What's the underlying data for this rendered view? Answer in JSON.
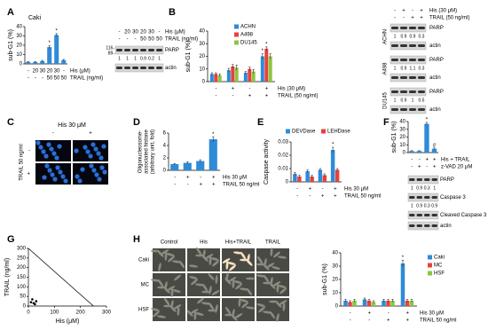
{
  "panels": [
    "A",
    "B",
    "C",
    "D",
    "E",
    "F",
    "G",
    "H"
  ],
  "chart_data": [
    {
      "type": "bar",
      "title": "Caki",
      "y_label": "sub-G1 (%)",
      "categories": [
        null,
        null,
        null,
        null,
        null,
        null
      ],
      "ylim": [
        0,
        40
      ],
      "yticks": [
        0,
        10,
        20,
        30,
        40
      ],
      "color": "#2e8bd8",
      "values": [
        2,
        2,
        3,
        18,
        31,
        4
      ],
      "errors": [
        0.5,
        0.5,
        0.8,
        1.5,
        1.5,
        0.8
      ],
      "significance": [
        null,
        null,
        null,
        "*",
        "*",
        null
      ],
      "condition_rows": [
        {
          "label": "His (μM)",
          "cells": [
            "-",
            "20",
            "30",
            "20",
            "30",
            "-"
          ]
        },
        {
          "label": "TRAIL (ng/ml)",
          "cells": [
            "-",
            "-",
            "-",
            "50",
            "50",
            "50"
          ]
        }
      ]
    },
    {
      "type": "bar",
      "y_label": "sub-G1 (%)",
      "categories": [
        null,
        null,
        null,
        null
      ],
      "ylim": [
        0,
        40
      ],
      "yticks": [
        0,
        10,
        20,
        30,
        40
      ],
      "series": [
        {
          "name": "ACHN",
          "color": "#2e8bd8",
          "values": [
            6,
            9,
            7,
            20
          ],
          "errors": [
            1,
            1.5,
            1,
            2
          ],
          "significance": [
            null,
            null,
            null,
            "*"
          ]
        },
        {
          "name": "A498",
          "color": "#e8413c",
          "values": [
            6,
            12,
            10,
            26
          ],
          "errors": [
            1,
            1.5,
            1.5,
            1.5
          ],
          "significance": [
            null,
            null,
            null,
            "*"
          ]
        },
        {
          "name": "DU145",
          "color": "#8cc63f",
          "values": [
            5,
            11,
            8,
            20
          ],
          "errors": [
            1,
            2,
            1.5,
            2
          ],
          "significance": [
            null,
            null,
            null,
            null
          ]
        }
      ],
      "condition_rows": [
        {
          "label": "His (30 μM)",
          "cells": [
            "-",
            "+",
            "-",
            "+"
          ]
        },
        {
          "label": "TRAIL (50 ng/ml)",
          "cells": [
            "-",
            "-",
            "+",
            "+"
          ]
        }
      ]
    },
    {
      "type": "bar",
      "y_label": [
        "Oligonucleosome-",
        "associated histone",
        "(arbitrary unit, fold)"
      ],
      "categories": [
        null,
        null,
        null,
        null
      ],
      "ylim": [
        0,
        6
      ],
      "yticks": [
        0,
        2,
        4,
        6
      ],
      "color": "#2e8bd8",
      "values": [
        1,
        1.2,
        1.5,
        5
      ],
      "errors": [
        0.1,
        0.2,
        0.2,
        0.4
      ],
      "significance": [
        null,
        null,
        null,
        "*"
      ],
      "condition_rows": [
        {
          "label": "His 30 μM",
          "cells": [
            "-",
            "+",
            "-",
            "+"
          ]
        },
        {
          "label": "TRAIL 50 ng/ml",
          "cells": [
            "-",
            "-",
            "+",
            "+"
          ]
        }
      ]
    },
    {
      "type": "bar",
      "y_label": "Caspase activity",
      "categories": [
        null,
        null,
        null,
        null
      ],
      "ylim": [
        0,
        0.03
      ],
      "yticks": [
        0,
        0.01,
        0.02,
        0.03
      ],
      "series": [
        {
          "name": "DEVDase",
          "color": "#2e8bd8",
          "values": [
            0.006,
            0.008,
            0.009,
            0.024
          ],
          "errors": [
            0.001,
            0.001,
            0.001,
            0.002
          ],
          "significance": [
            null,
            null,
            null,
            "*"
          ]
        },
        {
          "name": "LEHDase",
          "color": "#e8413c",
          "values": [
            0.004,
            0.004,
            0.005,
            0.009
          ],
          "errors": [
            0.001,
            0.001,
            0.001,
            0.001
          ],
          "significance": [
            null,
            null,
            null,
            null
          ]
        }
      ],
      "condition_rows": [
        {
          "label": "His 30 μM",
          "cells": [
            "-",
            "+",
            "-",
            "+"
          ]
        },
        {
          "label": "TRAIL 50 ng/ml",
          "cells": [
            "-",
            "-",
            "+",
            "+"
          ]
        }
      ]
    },
    {
      "type": "bar",
      "y_label": "sub-G1 (%)",
      "categories": [
        null,
        null,
        null,
        null
      ],
      "ylim": [
        0,
        40
      ],
      "yticks": [
        0,
        10,
        20,
        30,
        40
      ],
      "color": "#2e8bd8",
      "values": [
        2,
        2,
        37,
        5
      ],
      "errors": [
        0.5,
        0.5,
        2,
        1
      ],
      "significance": [
        null,
        null,
        "*",
        "#"
      ],
      "condition_rows": [
        {
          "label": "His + TRAIL",
          "cells": [
            "-",
            "-",
            "+",
            "+"
          ]
        },
        {
          "label": "z-VAD 20 μM",
          "cells": [
            "-",
            "+",
            "-",
            "+"
          ]
        }
      ]
    },
    {
      "type": "line",
      "y_label": "TRAIL (ng/ml)",
      "x_label": "His (μM)",
      "xlim": [
        0,
        300
      ],
      "ylim": [
        0,
        300
      ],
      "xticks": [
        0,
        100,
        200,
        300
      ],
      "yticks": [
        0,
        50,
        100,
        150,
        200,
        250,
        300
      ],
      "series": [
        {
          "style": "line",
          "color": "#000000",
          "x": [
            0,
            250
          ],
          "y": [
            300,
            0
          ]
        },
        {
          "style": "markers",
          "color": "#000000",
          "x": [
            10,
            20,
            15,
            25,
            30
          ],
          "y": [
            20,
            15,
            35,
            10,
            25
          ]
        }
      ]
    },
    {
      "type": "bar",
      "y_label": "sub-G1 (%)",
      "categories": [
        null,
        null,
        null,
        null
      ],
      "ylim": [
        0,
        40
      ],
      "yticks": [
        0,
        10,
        20,
        30,
        40
      ],
      "series": [
        {
          "name": "Caki",
          "color": "#2e8bd8",
          "values": [
            4,
            5,
            4,
            32
          ],
          "errors": [
            1,
            1,
            1,
            2.5
          ],
          "significance": [
            null,
            null,
            null,
            "*"
          ]
        },
        {
          "name": "MC",
          "color": "#e8413c",
          "values": [
            3,
            4,
            4,
            4
          ],
          "errors": [
            1,
            1,
            1,
            1
          ],
          "significance": [
            null,
            null,
            null,
            null
          ]
        },
        {
          "name": "HSF",
          "color": "#8cc63f",
          "values": [
            4,
            3,
            4,
            4
          ],
          "errors": [
            1,
            1,
            1,
            1
          ],
          "significance": [
            null,
            null,
            null,
            null
          ]
        }
      ],
      "condition_rows": [
        {
          "label": "His 30 μM",
          "cells": [
            "-",
            "+",
            "-",
            "+"
          ]
        },
        {
          "label": "TRAIL 50 ng/ml",
          "cells": [
            "-",
            "-",
            "+",
            "+"
          ]
        }
      ]
    }
  ],
  "blots": [
    {
      "header_rows": [
        {
          "label": "His (μM)",
          "cells": [
            "-",
            "20",
            "30",
            "20",
            "30",
            "-"
          ]
        },
        {
          "label": "TRAIL (ng/ml)",
          "cells": [
            "-",
            "-",
            "-",
            "50",
            "50",
            "50"
          ]
        }
      ],
      "groups": [
        {
          "rows": [
            {
              "label": "PARP",
              "ladder": [
                "116-",
                "89-"
              ],
              "quantities": [
                1,
                1,
                1,
                0.9,
                0.2,
                1
              ]
            },
            {
              "label": "actin"
            }
          ]
        }
      ]
    },
    {
      "header_rows": [
        {
          "label": "His (30 μM)",
          "cells": [
            "-",
            "+",
            "-",
            "+"
          ]
        },
        {
          "label": "TRAIL (50 ng/ml)",
          "cells": [
            "-",
            "-",
            "+",
            "+"
          ]
        }
      ],
      "groups": [
        {
          "name": "ACHN",
          "rows": [
            {
              "label": "PARP",
              "quantities": [
                1,
                0.9,
                0.9,
                0.3
              ]
            },
            {
              "label": "actin"
            }
          ]
        },
        {
          "name": "A498",
          "rows": [
            {
              "label": "PARP",
              "quantities": [
                1,
                0.9,
                1.1,
                0.3
              ]
            },
            {
              "label": "actin"
            }
          ]
        },
        {
          "name": "DU145",
          "rows": [
            {
              "label": "PARP",
              "quantities": [
                1,
                0.9,
                1,
                0.5
              ]
            },
            {
              "label": "actin"
            }
          ]
        }
      ]
    },
    {
      "groups": [
        {
          "rows": [
            {
              "label": "PARP",
              "quantities": [
                1,
                0.9,
                0.3,
                1
              ]
            },
            {
              "label": "Caspase 3",
              "quantities": [
                1,
                0.9,
                0.3,
                0.9
              ]
            },
            {
              "label": "Cleaved Caspase 3"
            },
            {
              "label": "actin"
            }
          ]
        }
      ]
    }
  ],
  "images": [
    {
      "title": "His 30 μM",
      "col_labels": [
        "-",
        "+"
      ],
      "row_title": "TRAIL 50 ng/ml",
      "row_labels": [
        "-",
        "+"
      ]
    },
    {
      "col_labels": [
        "Control",
        "His",
        "His+TRAIL",
        "TRAIL"
      ],
      "row_labels": [
        "Caki",
        "MC",
        "HSF"
      ]
    }
  ]
}
